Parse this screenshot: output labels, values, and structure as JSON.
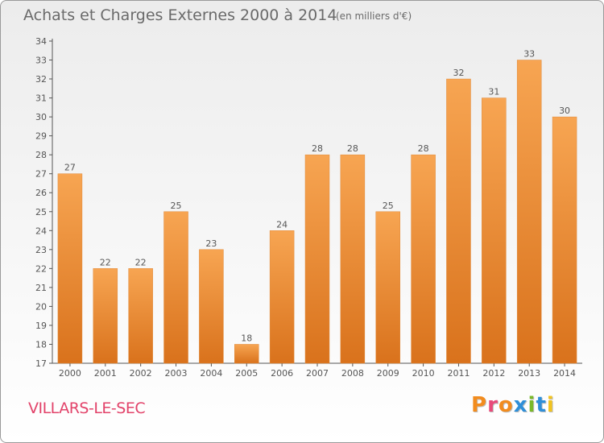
{
  "header": {
    "title": "Achats et Charges Externes 2000 à 2014",
    "subtitle": "(en milliers d'€)"
  },
  "footer": {
    "commune": "VILLARS-LE-SEC",
    "logo": "Proxiti",
    "logo_colors": [
      "#f28c1e",
      "#e84a7a",
      "#f28c1e",
      "#2f8fd8",
      "#7ab929",
      "#2f8fd8",
      "#f2c31e"
    ]
  },
  "colors": {
    "bar_top": "#f7a552",
    "bar_bottom": "#d9721c",
    "axis": "#555555",
    "grid": "#bfbfbf",
    "label": "#555555"
  },
  "chart_data": {
    "type": "bar",
    "categories": [
      "2000",
      "2001",
      "2002",
      "2003",
      "2004",
      "2005",
      "2006",
      "2007",
      "2008",
      "2009",
      "2010",
      "2011",
      "2012",
      "2013",
      "2014"
    ],
    "values": [
      27,
      22,
      22,
      25,
      23,
      18,
      24,
      28,
      28,
      25,
      28,
      32,
      31,
      33,
      30
    ],
    "title": "Achats et Charges Externes 2000 à 2014",
    "xlabel": "",
    "ylabel": "",
    "ylim": [
      17,
      34
    ],
    "yticks": [
      17,
      18,
      19,
      20,
      21,
      22,
      23,
      24,
      25,
      26,
      27,
      28,
      29,
      30,
      31,
      32,
      33,
      34
    ],
    "grid": false,
    "data_labels": true
  }
}
